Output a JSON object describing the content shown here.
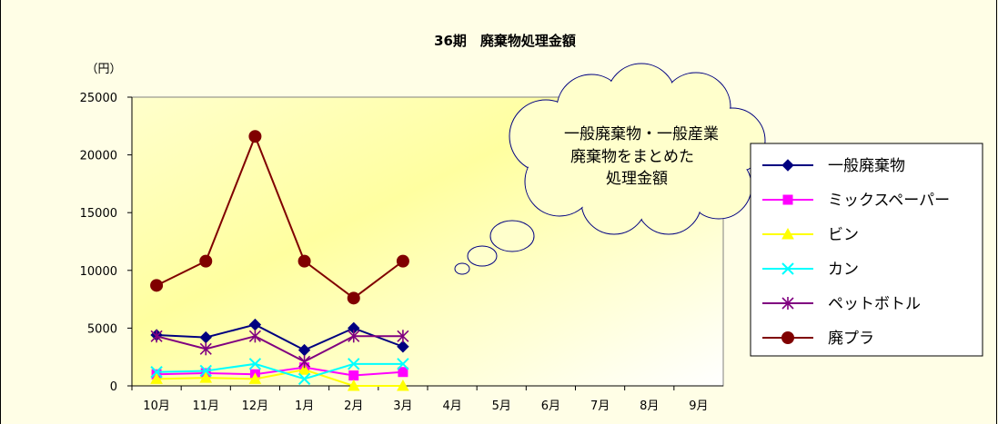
{
  "chart_data": {
    "type": "line",
    "title": "36期　廃棄物処理金額",
    "ylabel": "（円）",
    "xlabel": "",
    "categories": [
      "10月",
      "11月",
      "12月",
      "1月",
      "2月",
      "3月",
      "4月",
      "5月",
      "6月",
      "7月",
      "8月",
      "9月"
    ],
    "ylim": [
      0,
      25000
    ],
    "yticks": [
      0,
      5000,
      10000,
      15000,
      20000,
      25000
    ],
    "grid": false,
    "legend_position": "right",
    "plot_background": "gradient yellow to white",
    "series": [
      {
        "name": "一般廃棄物",
        "color": "#000080",
        "marker": "diamond",
        "values": [
          4400,
          4200,
          5300,
          3100,
          5000,
          3400,
          null,
          null,
          null,
          null,
          null,
          null
        ]
      },
      {
        "name": "ミックスペーパー",
        "color": "#ff00ff",
        "marker": "square",
        "values": [
          1000,
          1100,
          1000,
          1600,
          900,
          1200,
          null,
          null,
          null,
          null,
          null,
          null
        ]
      },
      {
        "name": "ビン",
        "color": "#ffff00",
        "marker": "triangle",
        "values": [
          600,
          700,
          600,
          1400,
          0,
          0,
          null,
          null,
          null,
          null,
          null,
          null
        ]
      },
      {
        "name": "カン",
        "color": "#00ffff",
        "marker": "x",
        "values": [
          1200,
          1300,
          1900,
          600,
          1900,
          1900,
          null,
          null,
          null,
          null,
          null,
          null
        ]
      },
      {
        "name": "ペットボトル",
        "color": "#800080",
        "marker": "asterisk",
        "values": [
          4300,
          3200,
          4300,
          2100,
          4300,
          4300,
          null,
          null,
          null,
          null,
          null,
          null
        ]
      },
      {
        "name": "廃プラ",
        "color": "#800000",
        "marker": "circle",
        "values": [
          8700,
          10800,
          21600,
          10800,
          7600,
          10800,
          null,
          null,
          null,
          null,
          null,
          null
        ]
      }
    ],
    "annotation": {
      "lines": [
        "一般廃棄物・一般産業",
        "廃棄物をまとめた",
        "処理金額"
      ],
      "fill": "#ffffcc"
    }
  }
}
